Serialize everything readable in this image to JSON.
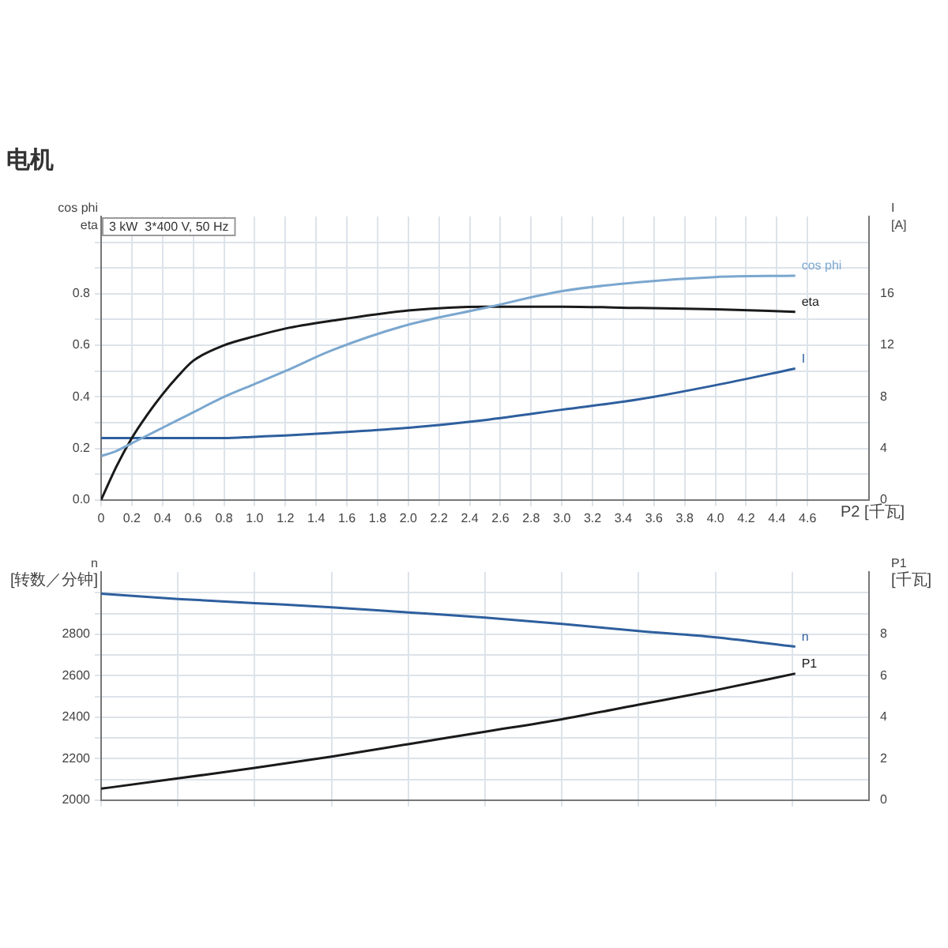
{
  "chart_data": [
    {
      "type": "line",
      "title": "电机",
      "xlabel": "P2 [千瓦]",
      "ylabel": "cos phi\neta",
      "y2label": "I\n[A]",
      "annotations": [
        "3 kW  3*400 V, 50 Hz"
      ],
      "x": [
        0,
        0.1,
        0.2,
        0.3,
        0.4,
        0.5,
        0.6,
        0.8,
        1.0,
        1.2,
        1.5,
        2.0,
        2.5,
        3.0,
        3.5,
        4.0,
        4.52
      ],
      "series": [
        {
          "name": "cos phi",
          "color": "#7ba7cf",
          "values": [
            0.17,
            0.19,
            0.22,
            0.25,
            0.28,
            0.31,
            0.34,
            0.4,
            0.45,
            0.5,
            0.58,
            0.68,
            0.745,
            0.81,
            0.845,
            0.865,
            0.87
          ]
        },
        {
          "name": "eta",
          "color": "#1a1a1a",
          "values": [
            0,
            0.13,
            0.24,
            0.33,
            0.41,
            0.48,
            0.54,
            0.6,
            0.635,
            0.665,
            0.695,
            0.735,
            0.75,
            0.75,
            0.745,
            0.74,
            0.73
          ]
        },
        {
          "name": "I",
          "color": "#2e5f9e",
          "axis": "y2",
          "values": [
            4.8,
            4.8,
            4.8,
            4.8,
            4.8,
            4.8,
            4.8,
            4.8,
            4.9,
            5.0,
            5.2,
            5.6,
            6.2,
            7.0,
            7.8,
            8.9,
            10.2
          ]
        }
      ],
      "xlim": [
        0,
        5
      ],
      "xticks": [
        0,
        0.2,
        0.4,
        0.6,
        0.8,
        {
          "value": 1,
          "label": "1.0"
        },
        1.2,
        1.4,
        1.6,
        1.8,
        {
          "value": 2,
          "label": "2.0"
        },
        2.2,
        2.4,
        2.6,
        2.8,
        {
          "value": 3,
          "label": "3.0"
        },
        3.2,
        3.4,
        3.6,
        3.8,
        {
          "value": 4,
          "label": "4.0"
        },
        4.2,
        4.4,
        4.6
      ],
      "ylim": [
        0,
        1.1
      ],
      "yticks": [
        {
          "value": 0,
          "label": "0.0"
        },
        {
          "value": 0.1,
          "label": null
        },
        0.2,
        {
          "value": 0.3,
          "label": null
        },
        0.4,
        {
          "value": 0.5,
          "label": null
        },
        0.6,
        {
          "value": 0.7,
          "label": null
        },
        0.8,
        {
          "value": 0.9,
          "label": null
        },
        {
          "value": 1.0,
          "label": null
        }
      ],
      "y2lim": [
        0,
        22
      ],
      "y2ticks": [
        0,
        4,
        8,
        12,
        16
      ],
      "grid": true,
      "legend": false,
      "marker": "none",
      "line_style": "solid"
    },
    {
      "type": "line",
      "ylabel": "n\n[转数／分钟]",
      "y2label": "P1\n[千瓦]",
      "x": [
        0,
        0.5,
        1.0,
        1.5,
        2.0,
        2.5,
        3.0,
        3.5,
        4.0,
        4.52
      ],
      "series": [
        {
          "name": "n",
          "color": "#2e5f9e",
          "values": [
            2995,
            2970,
            2950,
            2930,
            2905,
            2880,
            2850,
            2815,
            2785,
            2740
          ]
        },
        {
          "name": "P1",
          "color": "#1a1a1a",
          "axis": "y2",
          "values": [
            0.55,
            1.05,
            1.55,
            2.1,
            2.7,
            3.3,
            3.9,
            4.6,
            5.3,
            6.1
          ]
        }
      ],
      "xlim": [
        0,
        5
      ],
      "xticks": [
        {
          "value": 0,
          "label": null
        },
        {
          "value": 0.5,
          "label": null
        },
        {
          "value": 1,
          "label": null
        },
        {
          "value": 1.5,
          "label": null
        },
        {
          "value": 2,
          "label": null
        },
        {
          "value": 2.5,
          "label": null
        },
        {
          "value": 3,
          "label": null
        },
        {
          "value": 3.5,
          "label": null
        },
        {
          "value": 4,
          "label": null
        },
        {
          "value": 4.5,
          "label": null
        }
      ],
      "ylim": [
        2000,
        3100
      ],
      "yticks": [
        2000,
        {
          "value": 2100,
          "label": null
        },
        2200,
        {
          "value": 2300,
          "label": null
        },
        2400,
        {
          "value": 2500,
          "label": null
        },
        2600,
        {
          "value": 2700,
          "label": null
        },
        2800,
        {
          "value": 2900,
          "label": null
        },
        {
          "value": 3000,
          "label": null
        }
      ],
      "y2lim": [
        0,
        11
      ],
      "y2ticks": [
        0,
        2,
        4,
        6,
        8
      ],
      "tick_labels": "y",
      "grid": true,
      "legend": false,
      "marker": "none",
      "line_style": "solid"
    }
  ]
}
